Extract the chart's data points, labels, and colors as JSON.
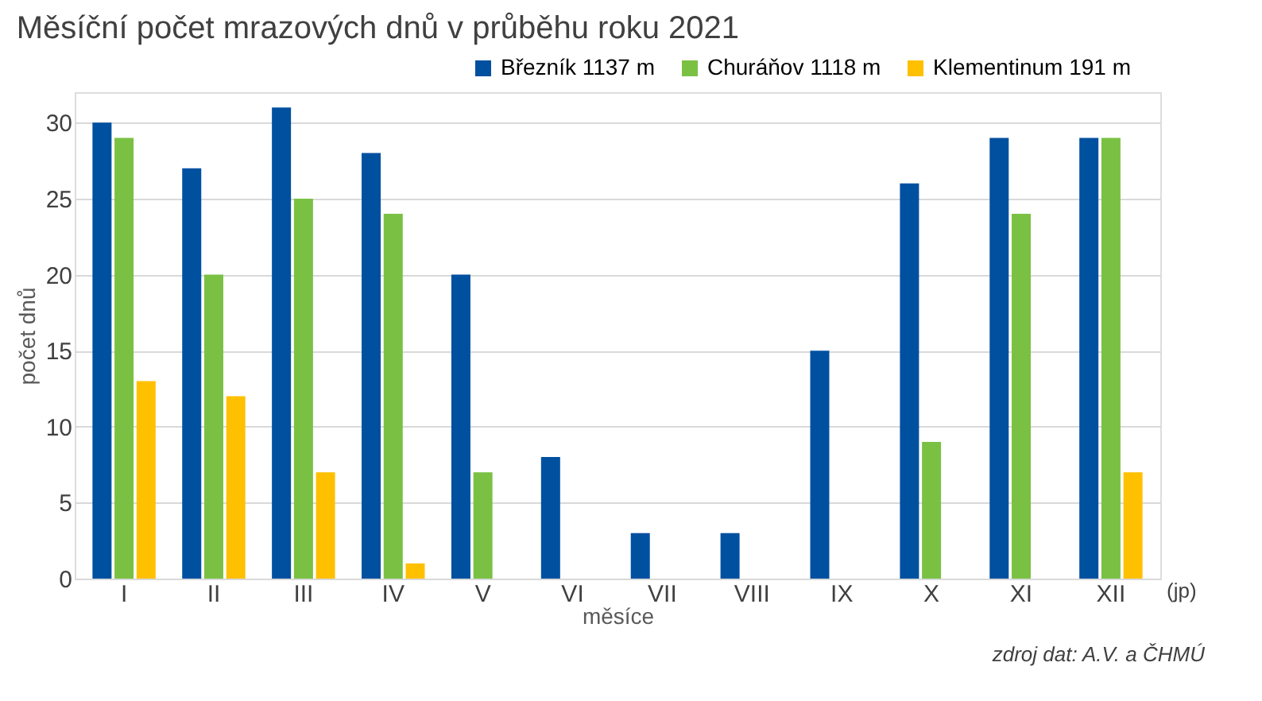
{
  "chart_data": {
    "type": "bar",
    "title": "Měsíční počet mrazových dnů v průběhu roku 2021",
    "xlabel": "měsíce",
    "ylabel": "počet dnů",
    "categories": [
      "I",
      "II",
      "III",
      "IV",
      "V",
      "VI",
      "VII",
      "VIII",
      "IX",
      "X",
      "XI",
      "XII"
    ],
    "series": [
      {
        "name": "Březník 1137 m",
        "color": "#0050a0",
        "values": [
          30,
          27,
          31,
          28,
          20,
          8,
          3,
          3,
          15,
          26,
          29,
          29
        ]
      },
      {
        "name": "Churáňov 1118 m",
        "color": "#7ac143",
        "values": [
          29,
          20,
          25,
          24,
          7,
          0,
          0,
          0,
          0,
          9,
          24,
          29
        ]
      },
      {
        "name": "Klementinum 191 m",
        "color": "#ffc000",
        "values": [
          13,
          12,
          7,
          1,
          0,
          0,
          0,
          0,
          0,
          0,
          0,
          7
        ]
      }
    ],
    "ylim": [
      0,
      32
    ],
    "yticks": [
      0,
      5,
      10,
      15,
      20,
      25,
      30
    ],
    "grid": "y",
    "legend": "top right",
    "annotations": [
      "(jp)",
      "zdroj dat: A.V. a ČHMÚ"
    ]
  }
}
